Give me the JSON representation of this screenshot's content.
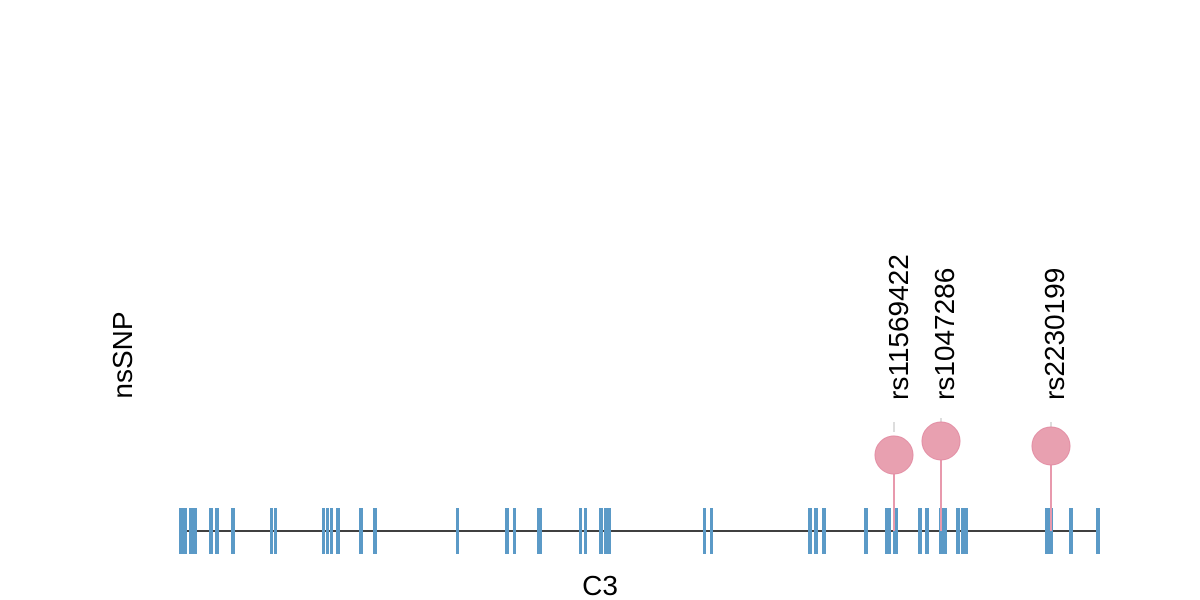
{
  "track_label": "nsSNP",
  "gene": "C3",
  "snps": [
    {
      "label": "rs11569422"
    },
    {
      "label": "rs1047286"
    },
    {
      "label": "rs2230199"
    }
  ]
}
